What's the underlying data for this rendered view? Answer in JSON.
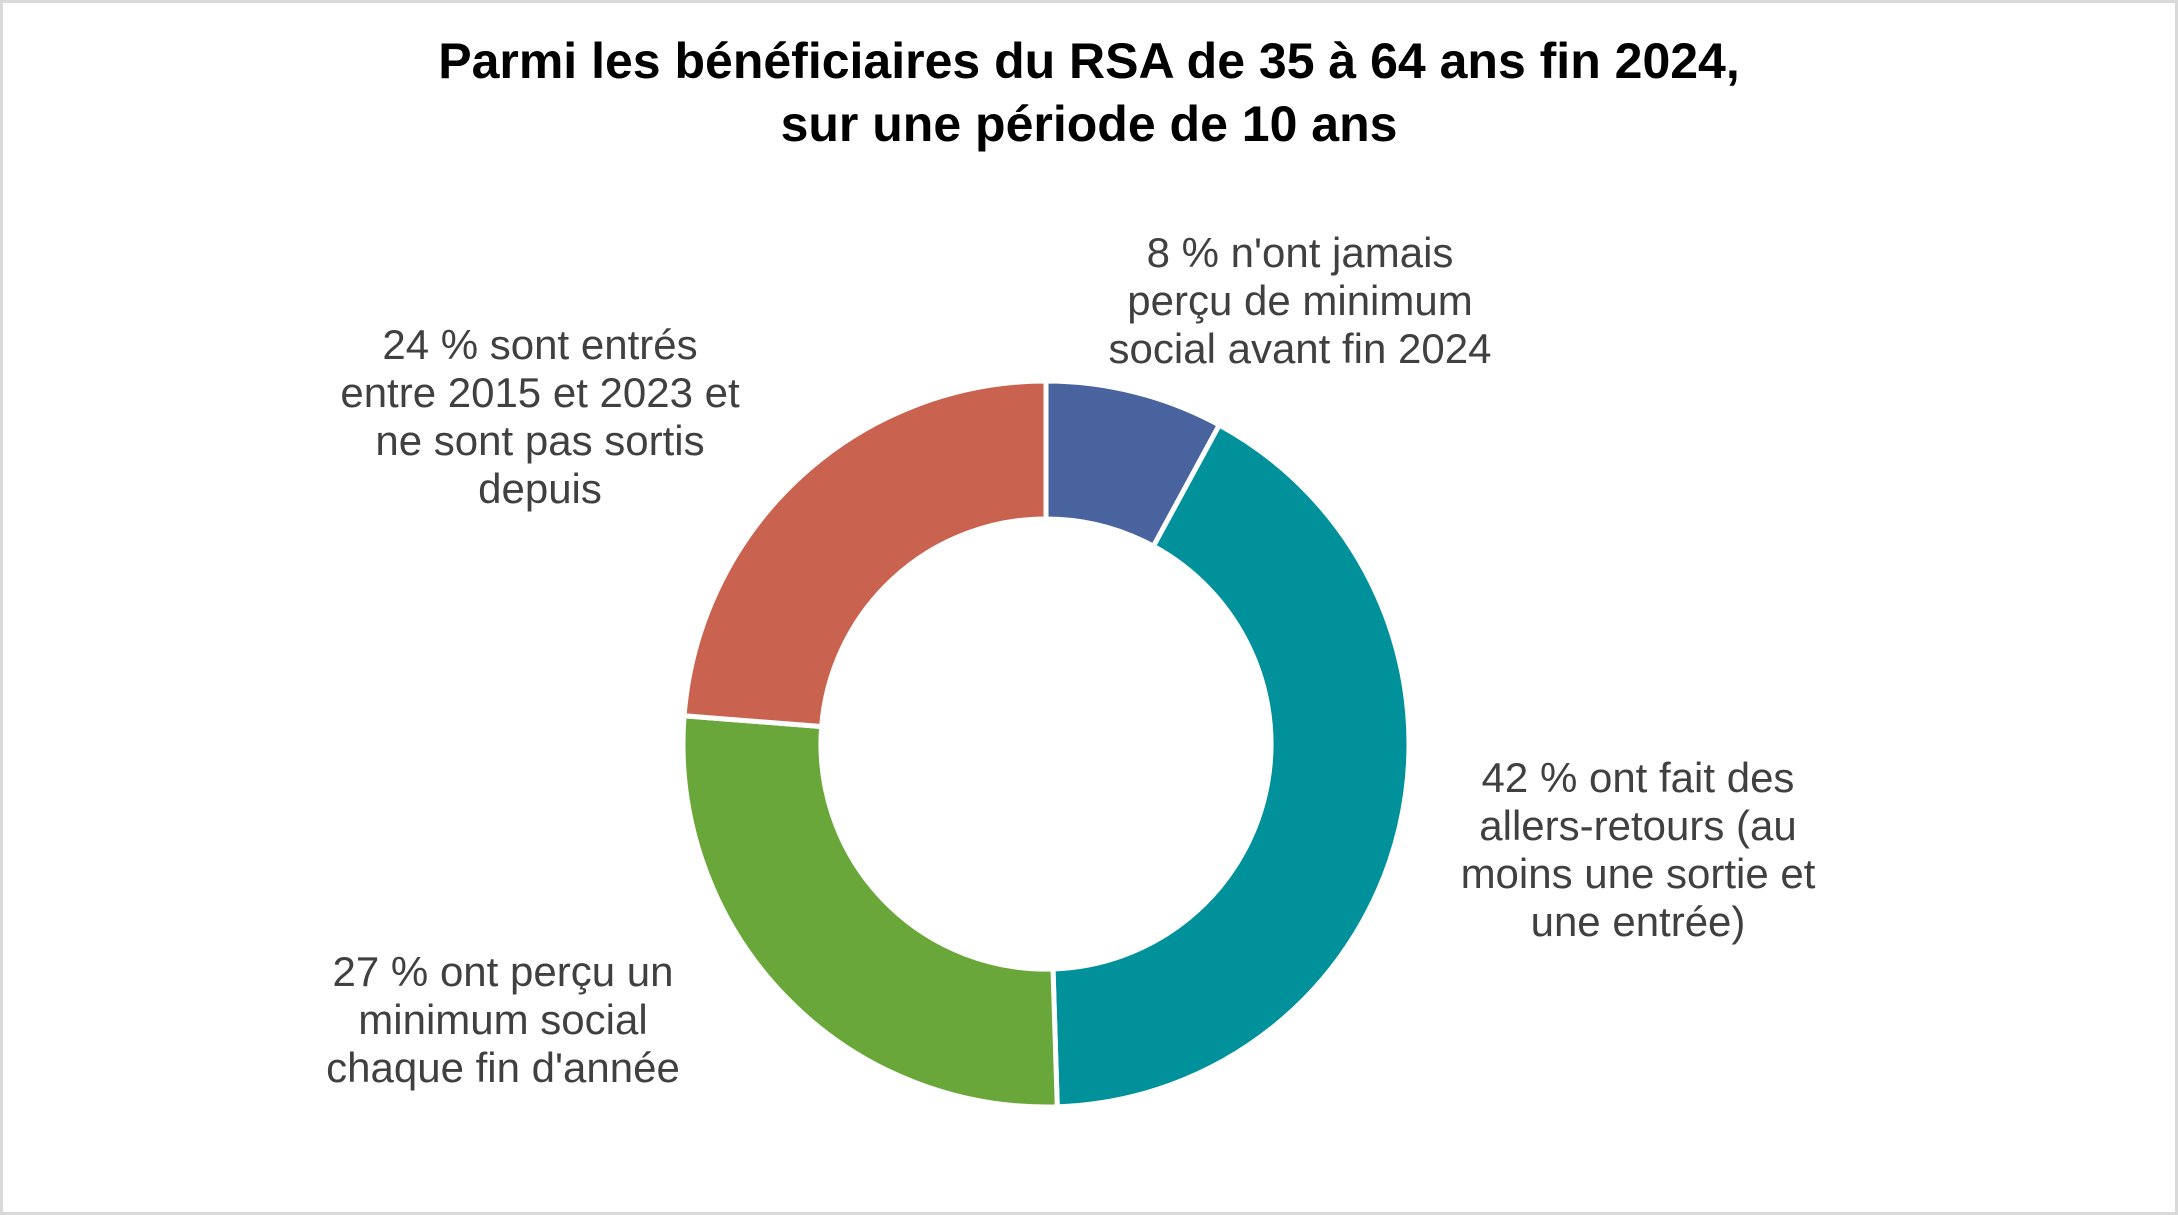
{
  "title": {
    "text": "Parmi les bénéficiaires du RSA de 35 à 64 ans fin 2024,\nsur une période de 10 ans"
  },
  "labels": {
    "never_received": {
      "text": "8 % n'ont jamais\nperçu de minimum\nsocial avant fin 2024"
    },
    "allers_retours": {
      "text": "42 % ont fait des\nallers-retours (au\nmoins une sortie et\nune entrée)"
    },
    "minimum_each_year": {
      "text": "27 % ont perçu un\nminimum social\nchaque fin d'année"
    },
    "entered_2015_2023": {
      "text": "24 % sont entrés\nentre 2015 et 2023 et\nne sont pas sortis\ndepuis"
    }
  },
  "colors": {
    "blue": "#48639E",
    "teal": "#00919B",
    "green": "#6AA73A",
    "red": "#C9624E",
    "label_text": "#404040",
    "title_text": "#000000",
    "frame_border": "#D9D9D9",
    "background": "#FFFFFF",
    "separator": "#FFFFFF"
  },
  "chart_data": {
    "type": "pie",
    "subtype": "donut",
    "title": "Parmi les bénéficiaires du RSA de 35 à 64 ans fin 2024, sur une période de 10 ans",
    "unit": "%",
    "start_angle_deg": 0,
    "direction": "clockwise",
    "inner_radius_ratio": 0.62,
    "legend": "none",
    "labels_position": "outside",
    "segments": [
      {
        "name": "never_received",
        "label": "8 % n'ont jamais perçu de minimum social avant fin 2024",
        "value": 8,
        "color": "#48639E"
      },
      {
        "name": "allers_retours",
        "label": "42 % ont fait des allers-retours (au moins une sortie et une entrée)",
        "value": 42,
        "color": "#00919B"
      },
      {
        "name": "minimum_each_year",
        "label": "27 % ont perçu un minimum social chaque fin d'année",
        "value": 27,
        "color": "#6AA73A"
      },
      {
        "name": "entered_2015_2023",
        "label": "24 % sont entrés entre 2015 et 2023 et ne sont pas sortis depuis",
        "value": 24,
        "color": "#C9624E"
      }
    ]
  }
}
